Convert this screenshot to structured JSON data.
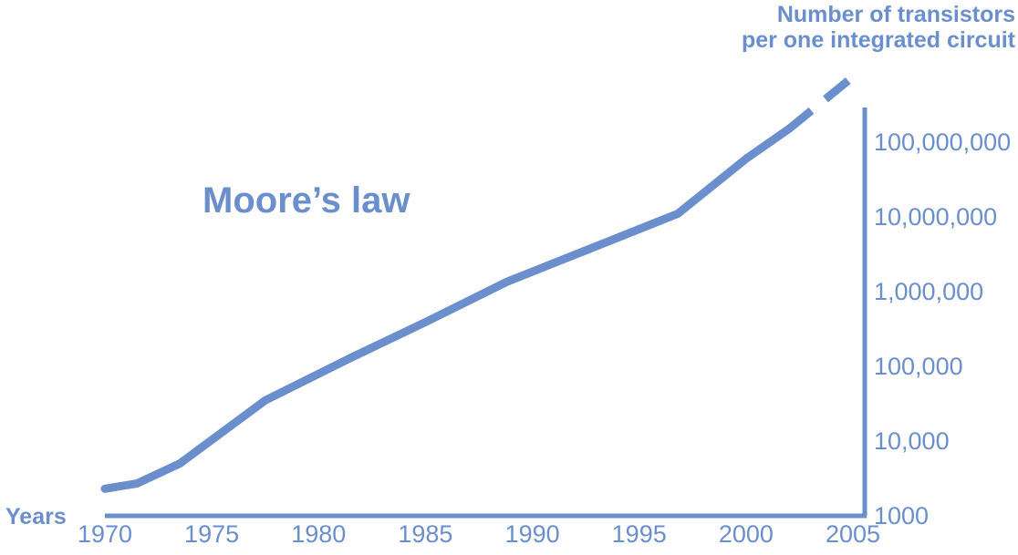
{
  "chart_data": {
    "type": "line",
    "title": "Moore’s law",
    "xlabel": "Years",
    "ylabel_lines": [
      "Number of transistors",
      "per one integrated circuit"
    ],
    "y_scale": "log",
    "xlim": [
      1970,
      2005
    ],
    "ylim": [
      1000,
      1000000000
    ],
    "x_ticks": [
      "1970",
      "1975",
      "1980",
      "1985",
      "1990",
      "1995",
      "2000",
      "2005"
    ],
    "y_ticks": [
      "1000",
      "10,000",
      "100,000",
      "1,000,000",
      "10,000,000",
      "100,000,000"
    ],
    "series": [
      {
        "style": "solid",
        "x": [
          1970,
          1971.5,
          1973.5,
          1977.5,
          1981.5,
          1985,
          1988.8,
          1996.8,
          2000,
          2002
        ],
        "y": [
          2300,
          2700,
          5000,
          35000,
          130000,
          390000,
          1350000,
          11000000,
          60000000,
          150000000
        ]
      },
      {
        "style": "dashed",
        "x": [
          2002,
          2005
        ],
        "y": [
          150000000,
          750000000
        ]
      }
    ],
    "color": "#6b8fcd"
  }
}
